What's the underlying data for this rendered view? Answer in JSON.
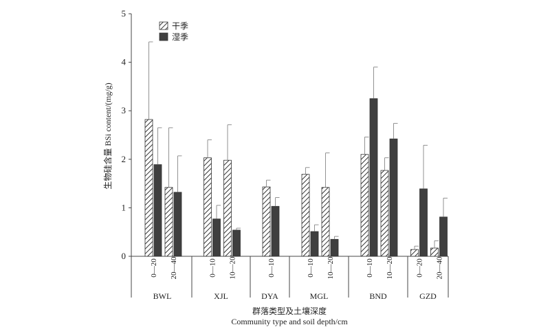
{
  "chart_data": {
    "type": "bar",
    "ylabel": "生物硅含量 BSi content/(mg/g)",
    "xlabel_cn": "群落类型及土壤深度",
    "xlabel_en": "Community type and soil depth/cm",
    "ylim": [
      0,
      5
    ],
    "yticks": [
      "0",
      "1",
      "2",
      "3",
      "4",
      "5"
    ],
    "legend": {
      "placement": "top-left",
      "entries": [
        "干季",
        "湿季"
      ]
    },
    "colors": {
      "dry_pattern_stroke": "#333333",
      "wet": "#3f3f3f",
      "axis": "#444444"
    },
    "groups": [
      {
        "name": "BWL",
        "depths": [
          "0—20",
          "20—40"
        ]
      },
      {
        "name": "XJL",
        "depths": [
          "0—10",
          "10—20"
        ]
      },
      {
        "name": "DYA",
        "depths": [
          "0—10"
        ]
      },
      {
        "name": "MGL",
        "depths": [
          "0—10",
          "10—20"
        ]
      },
      {
        "name": "BND",
        "depths": [
          "0—10",
          "10—20"
        ]
      },
      {
        "name": "GZD",
        "depths": [
          "0—20",
          "20—40"
        ]
      }
    ],
    "series": [
      {
        "name": "干季",
        "style": "hatched",
        "values": [
          2.82,
          1.42,
          2.03,
          1.98,
          1.43,
          1.69,
          1.42,
          2.1,
          1.77,
          0.14,
          0.17
        ],
        "errors": [
          1.6,
          1.23,
          0.37,
          0.73,
          0.14,
          0.14,
          0.71,
          0.36,
          0.26,
          0.07,
          0.15
        ]
      },
      {
        "name": "湿季",
        "style": "solid",
        "values": [
          1.89,
          1.32,
          0.77,
          0.54,
          1.03,
          0.51,
          0.35,
          3.25,
          2.42,
          1.39,
          0.81
        ],
        "errors": [
          0.76,
          0.75,
          0.28,
          0.04,
          0.18,
          0.14,
          0.06,
          0.65,
          0.32,
          0.9,
          0.39
        ]
      }
    ]
  }
}
